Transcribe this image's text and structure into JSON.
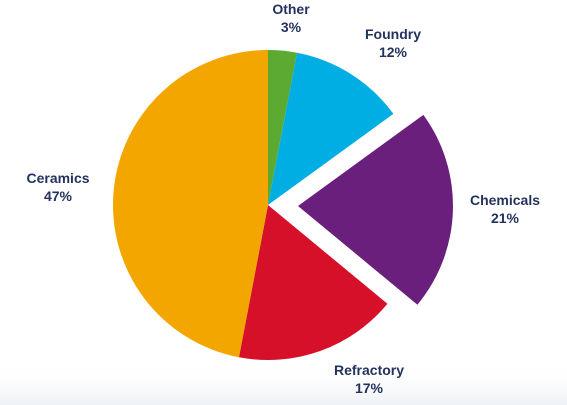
{
  "chart_data": {
    "type": "pie",
    "title": "",
    "start_angle_deg": 0,
    "direction": "clockwise",
    "slices": [
      {
        "label": "Other",
        "value": 3,
        "display": "3%",
        "color": "#5daa32",
        "exploded": false
      },
      {
        "label": "Foundry",
        "value": 12,
        "display": "12%",
        "color": "#00aee3",
        "exploded": false
      },
      {
        "label": "Chemicals",
        "value": 21,
        "display": "21%",
        "color": "#6a1f7d",
        "exploded": true
      },
      {
        "label": "Refractory",
        "value": 17,
        "display": "17%",
        "color": "#d7102a",
        "exploded": false
      },
      {
        "label": "Ceramics",
        "value": 47,
        "display": "47%",
        "color": "#f4a600",
        "exploded": false
      }
    ],
    "legend": "none"
  }
}
